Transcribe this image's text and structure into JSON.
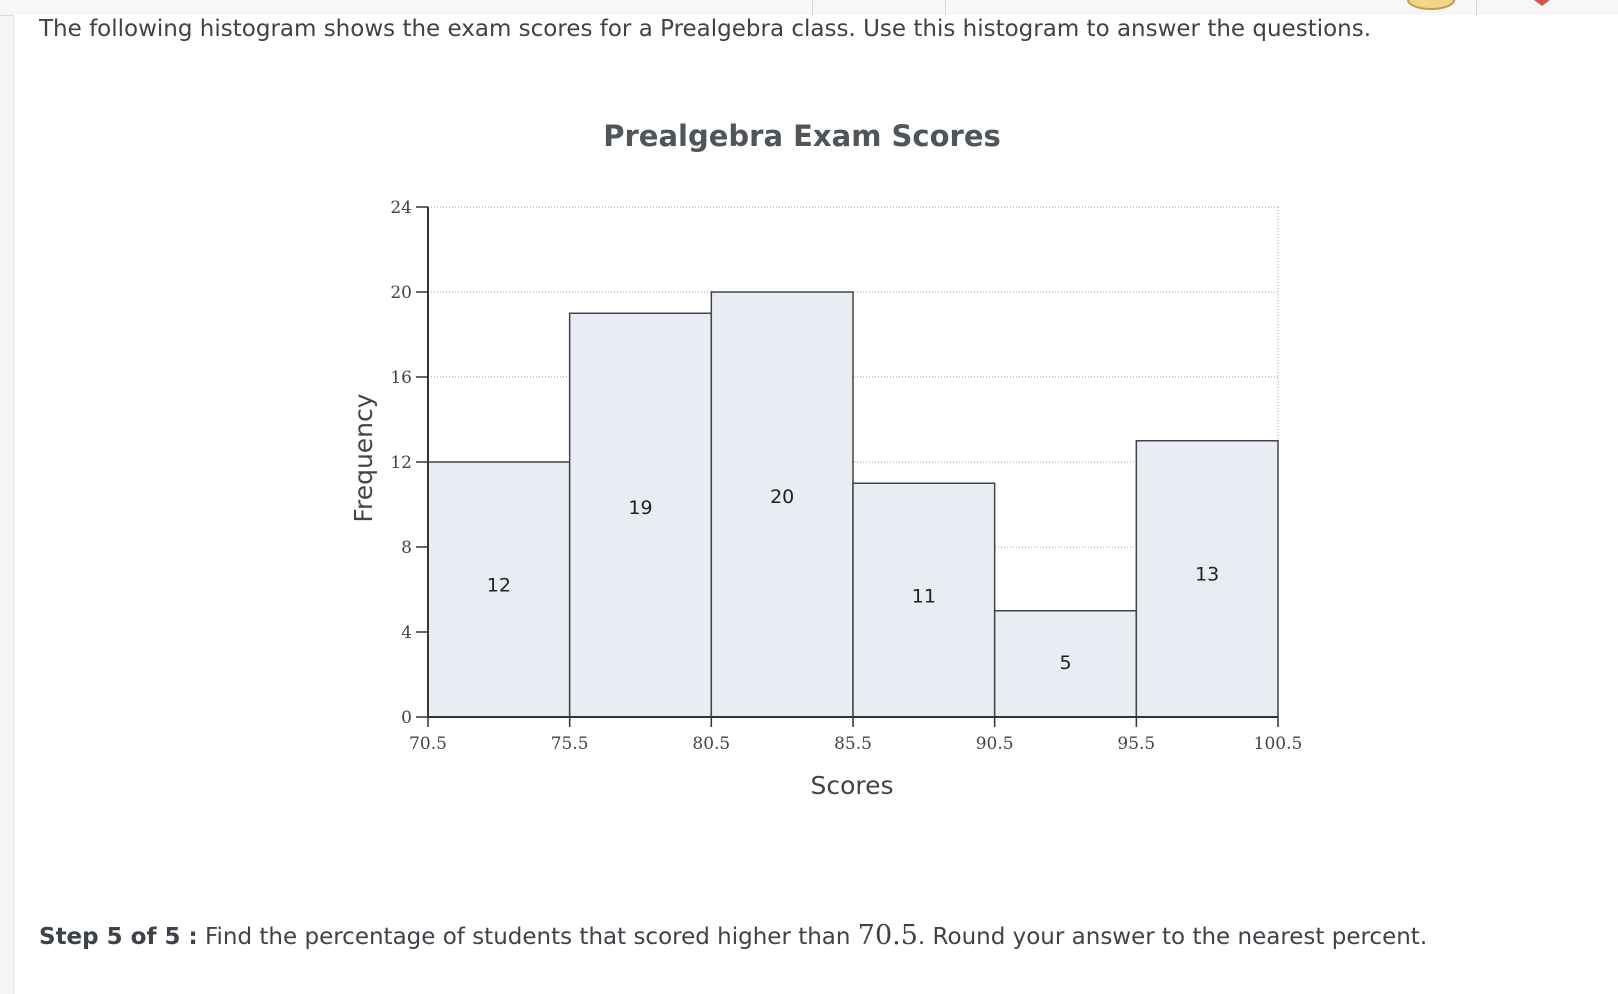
{
  "question": {
    "text": "The following histogram shows the exam scores for a Prealgebra class. Use this histogram to answer the questions."
  },
  "chart_data": {
    "type": "bar",
    "title": "Prealgebra Exam Scores",
    "xlabel": "Scores",
    "ylabel": "Frequency",
    "bin_edges": [
      70.5,
      75.5,
      80.5,
      85.5,
      90.5,
      95.5,
      100.5
    ],
    "x_tick_labels": [
      "70.5",
      "75.5",
      "80.5",
      "85.5",
      "90.5",
      "95.5",
      "100.5"
    ],
    "values": [
      12,
      19,
      20,
      11,
      5,
      13
    ],
    "data_labels": [
      "12",
      "19",
      "20",
      "11",
      "5",
      "13"
    ],
    "ylim": [
      0,
      24
    ],
    "y_ticks": [
      0,
      4,
      8,
      12,
      16,
      20,
      24
    ],
    "y_tick_labels": [
      "0",
      "4",
      "8",
      "12",
      "16",
      "20",
      "24"
    ],
    "grid": "dotted horizontal",
    "bar_color": "#e8edf3",
    "edge_color": "#444444"
  },
  "step": {
    "label": "Step 5 of 5 :",
    "text_before": "Find the percentage of students that scored higher than",
    "value": "70.5",
    "text_after": ". Round your answer to the nearest percent."
  },
  "colors": {
    "page_background": "#f5f6f8",
    "panel_background": "#ffffff",
    "text": "#3d4348"
  }
}
